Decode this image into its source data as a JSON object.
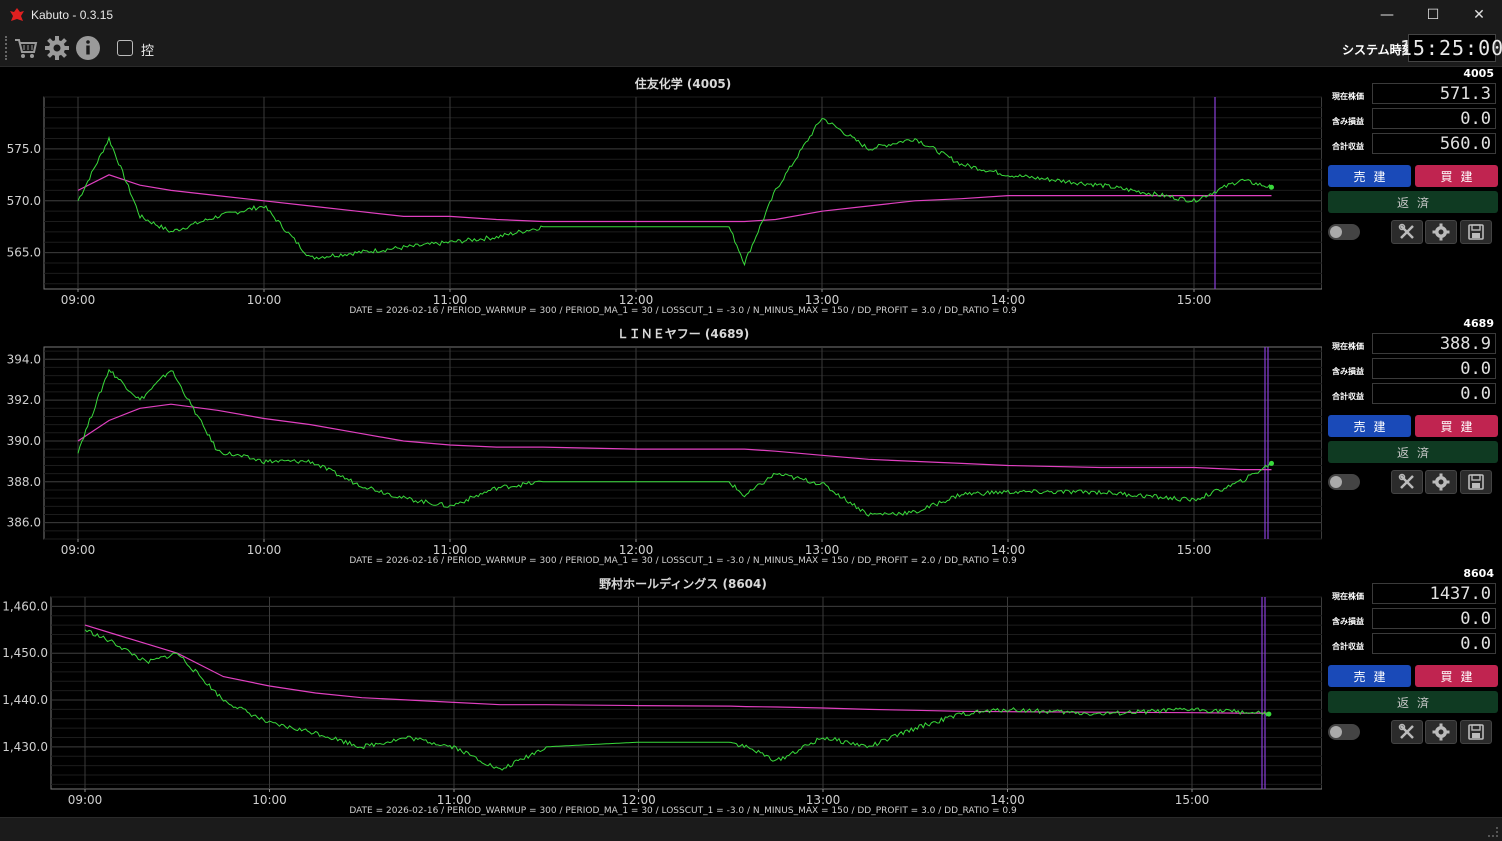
{
  "window": {
    "title": "Kabuto - 0.3.15",
    "minimize": "—",
    "maximize": "☐",
    "close": "✕"
  },
  "toolbar": {
    "icons": [
      "cart-icon",
      "gear-icon",
      "info-icon"
    ],
    "checkbox_label": "控",
    "system_time_label": "システム時刻",
    "system_time": "15:25:00"
  },
  "charts": [
    {
      "title": "住友化学 (4005)",
      "footer": "DATE = 2026-02-16 / PERIOD_WARMUP = 300 / PERIOD_MA_1 = 30 / LOSSCUT_1 = -3.0 / N_MINUS_MAX = 150 / DD_PROFIT = 3.0 / DD_RATIO = 0.9",
      "y_ticks": [
        "575.0",
        "570.0",
        "565.0"
      ],
      "x_ticks": [
        "09:00",
        "10:00",
        "11:00",
        "12:00",
        "13:00",
        "14:00",
        "15:00"
      ]
    },
    {
      "title": "ＬＩＮＥヤフー (4689)",
      "footer": "DATE = 2026-02-16 / PERIOD_WARMUP = 300 / PERIOD_MA_1 = 30 / LOSSCUT_1 = -3.0 / N_MINUS_MAX = 150 / DD_PROFIT = 2.0 / DD_RATIO = 0.9",
      "y_ticks": [
        "394.0",
        "392.0",
        "390.0",
        "388.0",
        "386.0"
      ],
      "x_ticks": [
        "09:00",
        "10:00",
        "11:00",
        "12:00",
        "13:00",
        "14:00",
        "15:00"
      ]
    },
    {
      "title": "野村ホールディングス (8604)",
      "footer": "DATE = 2026-02-16 / PERIOD_WARMUP = 300 / PERIOD_MA_1 = 30 / LOSSCUT_1 = -3.0 / N_MINUS_MAX = 150 / DD_PROFIT = 3.0 / DD_RATIO = 0.9",
      "y_ticks": [
        "1,460.0",
        "1,450.0",
        "1,440.0",
        "1,430.0"
      ],
      "x_ticks": [
        "09:00",
        "10:00",
        "11:00",
        "12:00",
        "13:00",
        "14:00",
        "15:00"
      ]
    }
  ],
  "panels": [
    {
      "code": "4005",
      "price_label": "現在株価",
      "price": "571.3",
      "unrealized_label": "含み損益",
      "unrealized": "0.0",
      "total_label": "合計収益",
      "total": "560.0",
      "sell_label": "売建",
      "buy_label": "買建",
      "close_label": "返済"
    },
    {
      "code": "4689",
      "price_label": "現在株価",
      "price": "388.9",
      "unrealized_label": "含み損益",
      "unrealized": "0.0",
      "total_label": "合計収益",
      "total": "0.0",
      "sell_label": "売建",
      "buy_label": "買建",
      "close_label": "返済"
    },
    {
      "code": "8604",
      "price_label": "現在株価",
      "price": "1437.0",
      "unrealized_label": "含み損益",
      "unrealized": "0.0",
      "total_label": "合計収益",
      "total": "0.0",
      "sell_label": "売建",
      "buy_label": "買建",
      "close_label": "返済"
    }
  ],
  "colors": {
    "price_line": "#39d93b",
    "ma_line": "#e040c0",
    "marker_line": "#8a3fd8",
    "grid": "#3a3a3a",
    "sell": "#1a4ab8",
    "buy": "#c02450",
    "close": "#0f3a22"
  },
  "chart_data": [
    {
      "type": "line",
      "title": "住友化学 (4005)",
      "x": [
        "09:00",
        "09:10",
        "09:20",
        "09:30",
        "09:45",
        "10:00",
        "10:15",
        "10:30",
        "10:45",
        "11:00",
        "11:15",
        "11:30",
        "12:00",
        "12:30",
        "12:35",
        "12:45",
        "13:00",
        "13:15",
        "13:30",
        "13:45",
        "14:00",
        "14:30",
        "15:00",
        "15:15",
        "15:25"
      ],
      "series": [
        {
          "values": [
            570.0,
            576.0,
            568.5,
            567.0,
            568.5,
            569.5,
            564.5,
            565.0,
            565.5,
            566.0,
            566.5,
            567.5,
            567.5,
            567.5,
            564.0,
            571.0,
            578.0,
            575.0,
            576.0,
            573.5,
            572.5,
            571.5,
            570.0,
            572.0,
            571.3
          ]
        },
        {
          "values": [
            571.0,
            572.5,
            571.5,
            571.0,
            570.5,
            570.0,
            569.5,
            569.0,
            568.5,
            568.5,
            568.2,
            568.0,
            568.0,
            568.0,
            568.0,
            568.2,
            569.0,
            569.5,
            570.0,
            570.2,
            570.5,
            570.5,
            570.5,
            570.5,
            570.5
          ]
        }
      ],
      "ylim": [
        561.5,
        580.0
      ],
      "y_ticks": [
        575.0,
        570.0,
        565.0
      ]
    },
    {
      "type": "line",
      "title": "ＬＩＮＥヤフー (4689)",
      "x": [
        "09:00",
        "09:10",
        "09:20",
        "09:30",
        "09:45",
        "10:00",
        "10:15",
        "10:30",
        "10:45",
        "11:00",
        "11:15",
        "11:30",
        "12:00",
        "12:30",
        "12:35",
        "12:45",
        "13:00",
        "13:15",
        "13:30",
        "13:45",
        "14:00",
        "14:30",
        "15:00",
        "15:15",
        "15:25"
      ],
      "series": [
        {
          "values": [
            389.5,
            393.5,
            392.0,
            393.5,
            389.5,
            389.0,
            389.0,
            387.9,
            387.2,
            386.8,
            387.7,
            388.0,
            388.0,
            388.0,
            387.3,
            388.4,
            387.9,
            386.4,
            386.5,
            387.4,
            387.5,
            387.5,
            387.1,
            388.0,
            388.9
          ]
        },
        {
          "values": [
            390.0,
            391.0,
            391.6,
            391.8,
            391.5,
            391.1,
            390.8,
            390.4,
            390.0,
            389.8,
            389.7,
            389.7,
            389.6,
            389.6,
            389.6,
            389.5,
            389.3,
            389.1,
            389.0,
            388.9,
            388.8,
            388.7,
            388.7,
            388.6,
            388.6
          ]
        }
      ],
      "ylim": [
        385.2,
        394.6
      ],
      "y_ticks": [
        394.0,
        392.0,
        390.0,
        388.0,
        386.0
      ]
    },
    {
      "type": "line",
      "title": "野村ホールディングス (8604)",
      "x": [
        "09:00",
        "09:10",
        "09:20",
        "09:30",
        "09:45",
        "10:00",
        "10:15",
        "10:30",
        "10:45",
        "11:00",
        "11:15",
        "11:30",
        "12:00",
        "12:30",
        "12:35",
        "12:45",
        "13:00",
        "13:15",
        "13:30",
        "13:45",
        "14:00",
        "14:30",
        "15:00",
        "15:15",
        "15:25"
      ],
      "series": [
        {
          "values": [
            1455.0,
            1452.0,
            1448.0,
            1450.0,
            1440.0,
            1435.0,
            1433.0,
            1430.0,
            1432.0,
            1430.0,
            1425.0,
            1430.0,
            1431.0,
            1431.0,
            1430.0,
            1427.0,
            1432.0,
            1430.0,
            1434.0,
            1437.0,
            1438.0,
            1437.0,
            1438.0,
            1437.5,
            1437.0
          ]
        },
        {
          "values": [
            1456.0,
            1454.0,
            1452.0,
            1450.0,
            1445.0,
            1443.0,
            1441.5,
            1440.5,
            1440.0,
            1439.5,
            1439.0,
            1439.0,
            1438.8,
            1438.7,
            1438.6,
            1438.5,
            1438.3,
            1438.0,
            1437.8,
            1437.6,
            1437.5,
            1437.4,
            1437.3,
            1437.2,
            1437.2
          ]
        }
      ],
      "ylim": [
        1421.0,
        1462.0
      ],
      "y_ticks": [
        1460.0,
        1450.0,
        1440.0,
        1430.0
      ]
    }
  ]
}
